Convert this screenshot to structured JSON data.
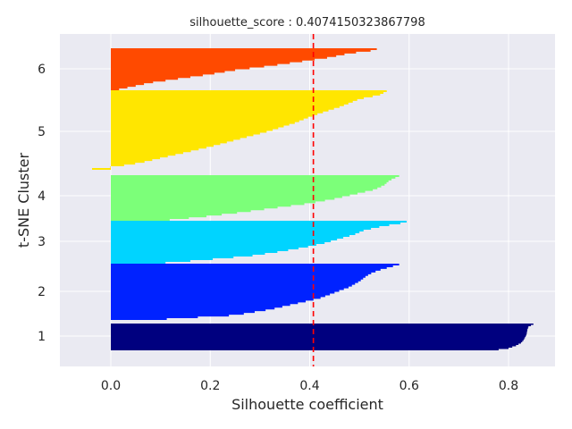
{
  "chart_data": {
    "type": "bar",
    "orientation": "horizontal",
    "title": "silhouette_score : 0.4074150323867798",
    "xlabel": "Silhouette coefficient",
    "ylabel": "t-SNE Cluster",
    "xlim": [
      -0.1,
      0.89
    ],
    "x_ticks": [
      "0.0",
      "0.2",
      "0.4",
      "0.6",
      "0.8"
    ],
    "x_tick_values": [
      0.0,
      0.2,
      0.4,
      0.6,
      0.8
    ],
    "y_ticks": [
      "1",
      "2",
      "3",
      "4",
      "5",
      "6"
    ],
    "grid": true,
    "background": "#EAEAF2",
    "average_line": {
      "value": 0.4074150323867798,
      "color": "#FF0000",
      "style": "dashed"
    },
    "clusters": [
      {
        "label": "1",
        "color": "#00007F",
        "profile": [
          [
            0,
            0.85
          ],
          [
            0.05,
            0.845
          ],
          [
            0.1,
            0.84
          ],
          [
            0.2,
            0.838
          ],
          [
            0.4,
            0.836
          ],
          [
            0.6,
            0.83
          ],
          [
            0.7,
            0.825
          ],
          [
            0.8,
            0.815
          ],
          [
            0.9,
            0.8
          ],
          [
            0.95,
            0.78
          ],
          [
            1.0,
            0.665
          ]
        ]
      },
      {
        "label": "2",
        "color": "#0022FF",
        "profile": [
          [
            0,
            0.58
          ],
          [
            0.05,
            0.56
          ],
          [
            0.1,
            0.54
          ],
          [
            0.15,
            0.525
          ],
          [
            0.2,
            0.515
          ],
          [
            0.3,
            0.5
          ],
          [
            0.4,
            0.48
          ],
          [
            0.5,
            0.45
          ],
          [
            0.6,
            0.42
          ],
          [
            0.7,
            0.37
          ],
          [
            0.8,
            0.32
          ],
          [
            0.9,
            0.25
          ],
          [
            1.0,
            0.05
          ]
        ]
      },
      {
        "label": "3",
        "color": "#00D4FF",
        "profile": [
          [
            0,
            0.595
          ],
          [
            0.05,
            0.58
          ],
          [
            0.1,
            0.55
          ],
          [
            0.2,
            0.51
          ],
          [
            0.3,
            0.49
          ],
          [
            0.4,
            0.46
          ],
          [
            0.5,
            0.43
          ],
          [
            0.6,
            0.39
          ],
          [
            0.7,
            0.34
          ],
          [
            0.8,
            0.28
          ],
          [
            0.9,
            0.18
          ],
          [
            1.0,
            0.06
          ]
        ]
      },
      {
        "label": "4",
        "color": "#7CFF79",
        "profile": [
          [
            0,
            0.58
          ],
          [
            0.05,
            0.57
          ],
          [
            0.1,
            0.56
          ],
          [
            0.2,
            0.55
          ],
          [
            0.3,
            0.53
          ],
          [
            0.4,
            0.49
          ],
          [
            0.5,
            0.45
          ],
          [
            0.6,
            0.4
          ],
          [
            0.7,
            0.33
          ],
          [
            0.8,
            0.26
          ],
          [
            0.9,
            0.18
          ],
          [
            1.0,
            0.08
          ]
        ]
      },
      {
        "label": "5",
        "color": "#FFE600",
        "profile": [
          [
            0,
            0.555
          ],
          [
            0.05,
            0.54
          ],
          [
            0.1,
            0.5
          ],
          [
            0.2,
            0.46
          ],
          [
            0.3,
            0.41
          ],
          [
            0.4,
            0.37
          ],
          [
            0.5,
            0.32
          ],
          [
            0.6,
            0.26
          ],
          [
            0.7,
            0.2
          ],
          [
            0.8,
            0.13
          ],
          [
            0.9,
            0.06
          ],
          [
            0.95,
            0.01
          ],
          [
            0.97,
            -0.03
          ],
          [
            1.0,
            -0.06
          ]
        ]
      },
      {
        "label": "6",
        "color": "#FF4A00",
        "profile": [
          [
            0,
            0.535
          ],
          [
            0.05,
            0.52
          ],
          [
            0.1,
            0.48
          ],
          [
            0.2,
            0.44
          ],
          [
            0.3,
            0.38
          ],
          [
            0.4,
            0.32
          ],
          [
            0.5,
            0.25
          ],
          [
            0.6,
            0.2
          ],
          [
            0.7,
            0.14
          ],
          [
            0.8,
            0.08
          ],
          [
            0.9,
            0.04
          ],
          [
            1.0,
            0.0
          ]
        ]
      }
    ]
  }
}
